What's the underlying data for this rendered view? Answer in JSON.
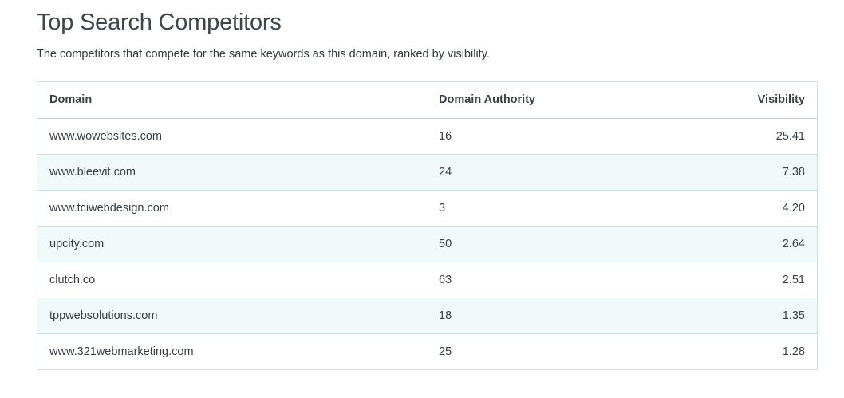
{
  "header": {
    "title": "Top Search Competitors",
    "subtitle": "The competitors that compete for the same keywords as this domain, ranked by visibility."
  },
  "table": {
    "columns": {
      "domain": "Domain",
      "authority": "Domain Authority",
      "visibility": "Visibility"
    },
    "rows": [
      {
        "domain": "www.wowebsites.com",
        "authority": "16",
        "visibility": "25.41"
      },
      {
        "domain": "www.bleevit.com",
        "authority": "24",
        "visibility": "7.38"
      },
      {
        "domain": "www.tciwebdesign.com",
        "authority": "3",
        "visibility": "4.20"
      },
      {
        "domain": "upcity.com",
        "authority": "50",
        "visibility": "2.64"
      },
      {
        "domain": "clutch.co",
        "authority": "63",
        "visibility": "2.51"
      },
      {
        "domain": "tppwebsolutions.com",
        "authority": "18",
        "visibility": "1.35"
      },
      {
        "domain": "www.321webmarketing.com",
        "authority": "25",
        "visibility": "1.28"
      }
    ]
  },
  "colors": {
    "alt_row": "#f2f9fa",
    "border": "#d3d8dc",
    "text": "#3a3f45"
  }
}
